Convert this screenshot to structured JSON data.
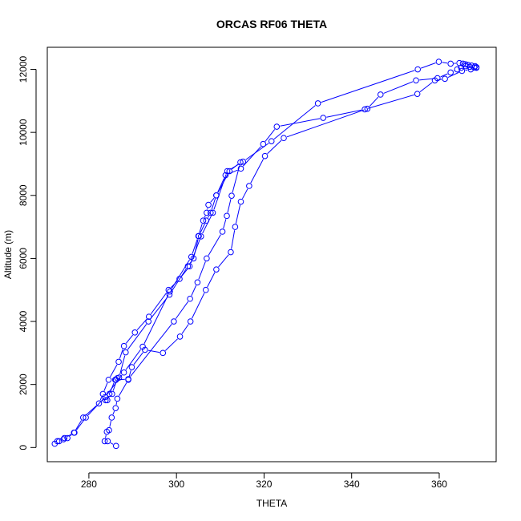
{
  "chart_data": {
    "type": "line",
    "title": "ORCAS RF06 THETA",
    "xlabel": "THETA",
    "ylabel": "Altitude (m)",
    "xlim": [
      270.5,
      373
    ],
    "ylim": [
      -450,
      12700
    ],
    "xticks": [
      280,
      300,
      320,
      340,
      360
    ],
    "yticks": [
      0,
      2000,
      4000,
      6000,
      8000,
      10000,
      12000
    ],
    "marker": "open-circle",
    "color": "#0000ff",
    "grid": false,
    "series": [
      {
        "x": [
          286.2,
          284.3,
          283.6,
          284.1,
          284.6,
          285.2,
          286.1,
          286.5,
          289.0,
          289.8,
          292.8,
          296.9,
          300.8,
          303.2,
          306.7,
          309.1,
          312.4,
          313.4,
          314.7,
          316.6,
          320.2,
          324.5,
          343.6,
          346.6,
          354.7,
          359.6,
          362.6,
          364.1,
          365.0,
          366.0,
          367.0,
          368.0,
          368.5,
          368.2,
          367.4,
          366.6,
          366.0,
          365.4,
          364.6,
          362.6,
          359.9,
          355.1,
          332.3,
          321.7,
          315.2,
          311.6,
          308.3,
          305.6,
          303.0,
          300.7,
          298.2,
          293.7,
          290.5,
          288.0,
          286.8,
          284.5,
          283.2,
          282.3,
          278.7,
          276.6,
          275.1,
          274.2,
          273.2,
          272.2
        ],
        "y": [
          50,
          200,
          200,
          500,
          550,
          950,
          1250,
          1550,
          2150,
          2550,
          3100,
          3000,
          3520,
          4000,
          5000,
          5650,
          6200,
          7000,
          7800,
          8300,
          9250,
          9820,
          10750,
          11200,
          11650,
          11720,
          11900,
          12000,
          12050,
          12100,
          12080,
          12060,
          12070,
          12100,
          12120,
          12140,
          12160,
          12180,
          12200,
          12180,
          12240,
          12000,
          10920,
          9720,
          9070,
          8770,
          7450,
          6700,
          5750,
          5350,
          5000,
          4150,
          3650,
          3220,
          2720,
          2150,
          1700,
          1400,
          950,
          470,
          300,
          260,
          200,
          120
        ]
      },
      {
        "x": [
          368.5,
          367.2,
          365.2,
          361.3,
          359.0,
          355.0,
          343.0,
          333.5,
          322.9,
          319.8,
          314.7,
          311.2,
          309.1,
          307.8,
          306.8,
          305.1,
          303.9,
          302.6,
          298.4,
          293.6,
          288.4,
          286.9,
          286.0,
          284.7,
          284.2,
          283.8,
          285.3,
          286.5,
          286.2,
          289.0,
          299.4,
          303.1,
          304.8,
          306.9,
          310.5,
          311.5,
          312.6,
          314.6,
          312.1,
          309.1,
          307.3,
          306.9,
          306.1,
          305.0,
          303.4,
          298.5,
          292.3,
          288.0,
          283.7,
          279.3,
          276.7,
          274.4,
          272.8
        ],
        "y": [
          12050,
          12000,
          11950,
          11700,
          11650,
          11220,
          10730,
          10460,
          10180,
          9630,
          8850,
          8640,
          8000,
          7450,
          7200,
          6710,
          6000,
          5750,
          4850,
          4000,
          3020,
          2220,
          2150,
          1700,
          1500,
          1500,
          1700,
          2200,
          2150,
          2170,
          4000,
          4720,
          5240,
          6000,
          6850,
          7350,
          7990,
          9050,
          8770,
          8000,
          7700,
          7450,
          7200,
          6710,
          6050,
          4950,
          3200,
          2380,
          1600,
          950,
          470,
          300,
          200
        ]
      }
    ]
  }
}
